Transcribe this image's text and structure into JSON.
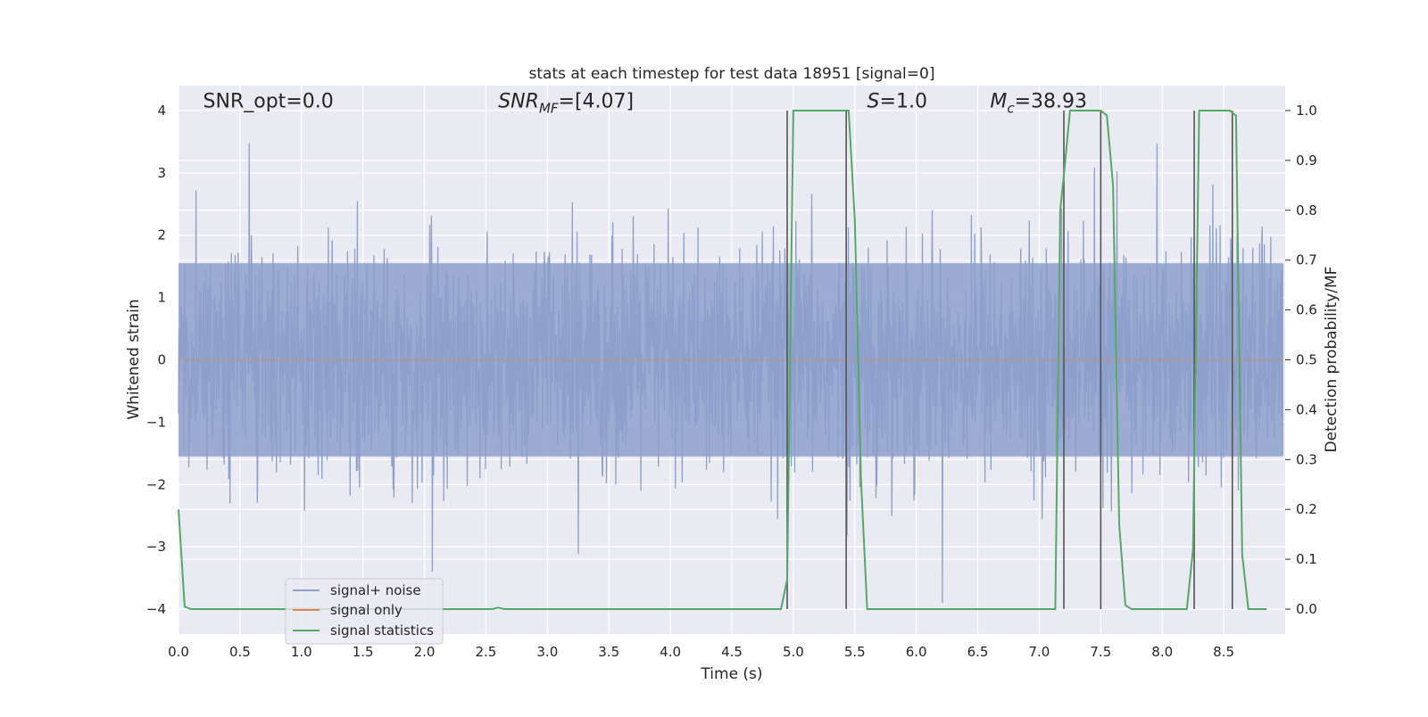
{
  "chart_data": {
    "type": "line",
    "title": "stats at each timestep for test data 18951 [signal=0]",
    "xlabel": "Time (s)",
    "ylabel": "Whitened strain",
    "ylabel_right": "Detection probability/MF",
    "xlim": [
      0.0,
      9.0
    ],
    "ylim": [
      -4.4,
      4.4
    ],
    "ylim_right": [
      -0.05,
      1.05
    ],
    "grid": true,
    "x_ticks": [
      0.0,
      0.5,
      1.0,
      1.5,
      2.0,
      2.5,
      3.0,
      3.5,
      4.0,
      4.5,
      5.0,
      5.5,
      6.0,
      6.5,
      7.0,
      7.5,
      8.0,
      8.5
    ],
    "x_tick_labels": [
      "0.0",
      "0.5",
      "1.0",
      "1.5",
      "2.0",
      "2.5",
      "3.0",
      "3.5",
      "4.0",
      "4.5",
      "5.0",
      "5.5",
      "6.0",
      "6.5",
      "7.0",
      "7.5",
      "8.0",
      "8.5"
    ],
    "y_ticks": [
      -4,
      -3,
      -2,
      -1,
      0,
      1,
      2,
      3,
      4
    ],
    "y_tick_labels": [
      "−4",
      "−3",
      "−2",
      "−1",
      "0",
      "1",
      "2",
      "3",
      "4"
    ],
    "y_right_ticks": [
      0.0,
      0.1,
      0.2,
      0.3,
      0.4,
      0.5,
      0.6,
      0.7,
      0.8,
      0.9,
      1.0
    ],
    "y_right_tick_labels": [
      "0.0",
      "0.1",
      "0.2",
      "0.3",
      "0.4",
      "0.5",
      "0.6",
      "0.7",
      "0.8",
      "0.9",
      "1.0"
    ],
    "annotations": [
      {
        "text": "SNR_opt=0.0",
        "x": 0.2,
        "y": 4.05
      },
      {
        "text": "SNR_MF=[4.07]",
        "x": 2.6,
        "y": 4.05
      },
      {
        "text": "S=1.0",
        "x": 5.6,
        "y": 4.05
      },
      {
        "text": "M_c=38.93",
        "x": 6.6,
        "y": 4.05
      }
    ],
    "legend": {
      "position": "lower-left",
      "entries": [
        "signal+ noise",
        "signal only",
        "signal statistics"
      ]
    },
    "series": [
      {
        "name": "signal+ noise",
        "axis": "left",
        "color": "#8da0cb",
        "noise": {
          "sample_rate": 2048,
          "duration": 9.0,
          "typical_abs_max": 2.0,
          "peak_abs_max": 3.9
        }
      },
      {
        "name": "signal only",
        "axis": "left",
        "color": "#dd8452",
        "values_constant": 0.0
      },
      {
        "name": "signal statistics",
        "axis": "right",
        "color": "#55a868",
        "x": [
          0.0,
          0.05,
          0.1,
          2.5,
          2.55,
          2.6,
          2.65,
          4.85,
          4.9,
          4.95,
          5.0,
          5.05,
          5.1,
          5.2,
          5.4,
          5.45,
          5.5,
          5.55,
          5.6,
          5.65,
          7.05,
          7.13,
          7.17,
          7.2,
          7.25,
          7.3,
          7.35,
          7.4,
          7.45,
          7.5,
          7.55,
          7.6,
          7.65,
          7.7,
          7.75,
          8.15,
          8.2,
          8.25,
          8.3,
          8.35,
          8.4,
          8.45,
          8.5,
          8.55,
          8.6,
          8.65,
          8.7,
          8.85
        ],
        "values": [
          0.2,
          0.005,
          0.0,
          0.0,
          0.0,
          0.003,
          0.0,
          0.0,
          0.0,
          0.06,
          1.0,
          1.0,
          1.0,
          1.0,
          1.0,
          1.0,
          0.78,
          0.26,
          0.0,
          0.0,
          0.0,
          0.0,
          0.8,
          0.87,
          1.0,
          1.0,
          1.0,
          1.0,
          1.0,
          1.0,
          0.99,
          0.85,
          0.17,
          0.008,
          0.0,
          0.0,
          0.0,
          0.12,
          1.0,
          1.0,
          1.0,
          1.0,
          1.0,
          1.0,
          0.99,
          0.11,
          0.0,
          0.0
        ]
      }
    ],
    "vertical_lines": {
      "color": "#555555",
      "x": [
        4.95,
        5.43,
        7.2,
        7.5,
        8.26,
        8.57
      ],
      "y_range": [
        0.0,
        1.0
      ]
    }
  }
}
